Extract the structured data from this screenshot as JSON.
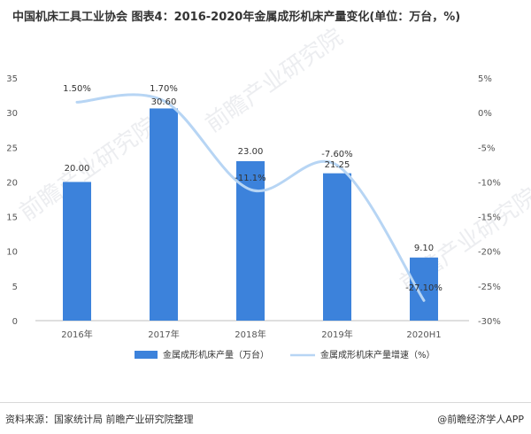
{
  "header": {
    "title": "中国机床工具工业协会 图表4：2016-2020年金属成形机床产量变化(单位：万台，%)"
  },
  "footer": {
    "source": "资料来源：国家统计局 前瞻产业研究院整理",
    "brand": "@前瞻经济学人APP"
  },
  "watermark": {
    "text": "前瞻产业研究院"
  },
  "colors": {
    "bar": "#3c82db",
    "line": "#b7d5f4"
  },
  "chart_data": {
    "type": "bar",
    "categories": [
      "2016年",
      "2017年",
      "2018年",
      "2019年",
      "2020H1"
    ],
    "series": [
      {
        "name": "金属成形机床产量（万台）",
        "type": "bar",
        "axis": "left",
        "values": [
          20.0,
          30.6,
          23.0,
          21.25,
          9.1
        ],
        "labels": [
          "20.00",
          "30.60",
          "23.00",
          "21.25",
          "9.10"
        ]
      },
      {
        "name": "金属成形机床产量增速（%）",
        "type": "line",
        "axis": "right",
        "values": [
          1.5,
          1.7,
          -11.1,
          -7.6,
          -27.1
        ],
        "labels": [
          "1.50%",
          "1.70%",
          "-11.1%",
          "-7.60%",
          "-27.10%"
        ]
      }
    ],
    "y_left": {
      "ylim": [
        0,
        35
      ],
      "ticks": [
        "0",
        "5",
        "10",
        "15",
        "20",
        "25",
        "30",
        "35"
      ]
    },
    "y_right": {
      "ylim": [
        -30,
        5
      ],
      "ticks": [
        "-30%",
        "-25%",
        "-20%",
        "-15%",
        "-10%",
        "-5%",
        "0%",
        "5%"
      ]
    },
    "grid": false,
    "legend": "bottom"
  }
}
